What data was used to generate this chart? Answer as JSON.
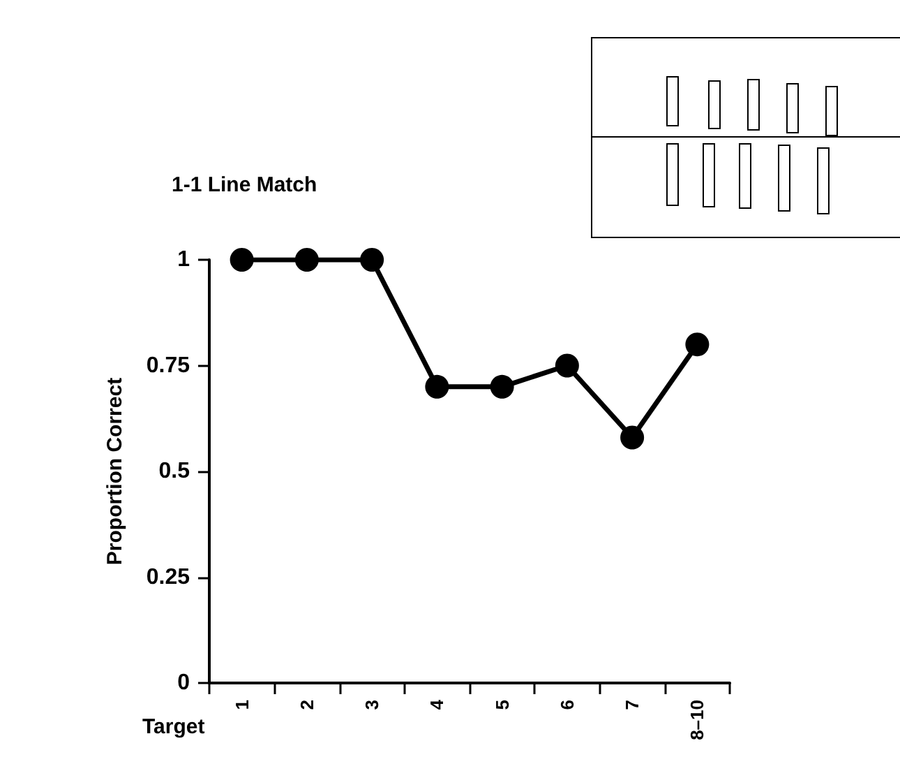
{
  "chart_data": {
    "type": "line",
    "title": "1-1 Line Match",
    "xlabel": "Target",
    "ylabel": "Proportion Correct",
    "categories": [
      "1",
      "2",
      "3",
      "4",
      "5",
      "6",
      "7",
      "8–10"
    ],
    "series": [
      {
        "color": "#000000",
        "values": [
          1,
          1,
          1,
          0.7,
          0.7,
          0.75,
          0.58,
          0.8
        ]
      }
    ],
    "ylim": [
      0,
      1
    ],
    "yticks": [
      0,
      0.25,
      0.5,
      0.75,
      1
    ],
    "grid": false,
    "marker": "circle",
    "line_style": "solid"
  }
}
